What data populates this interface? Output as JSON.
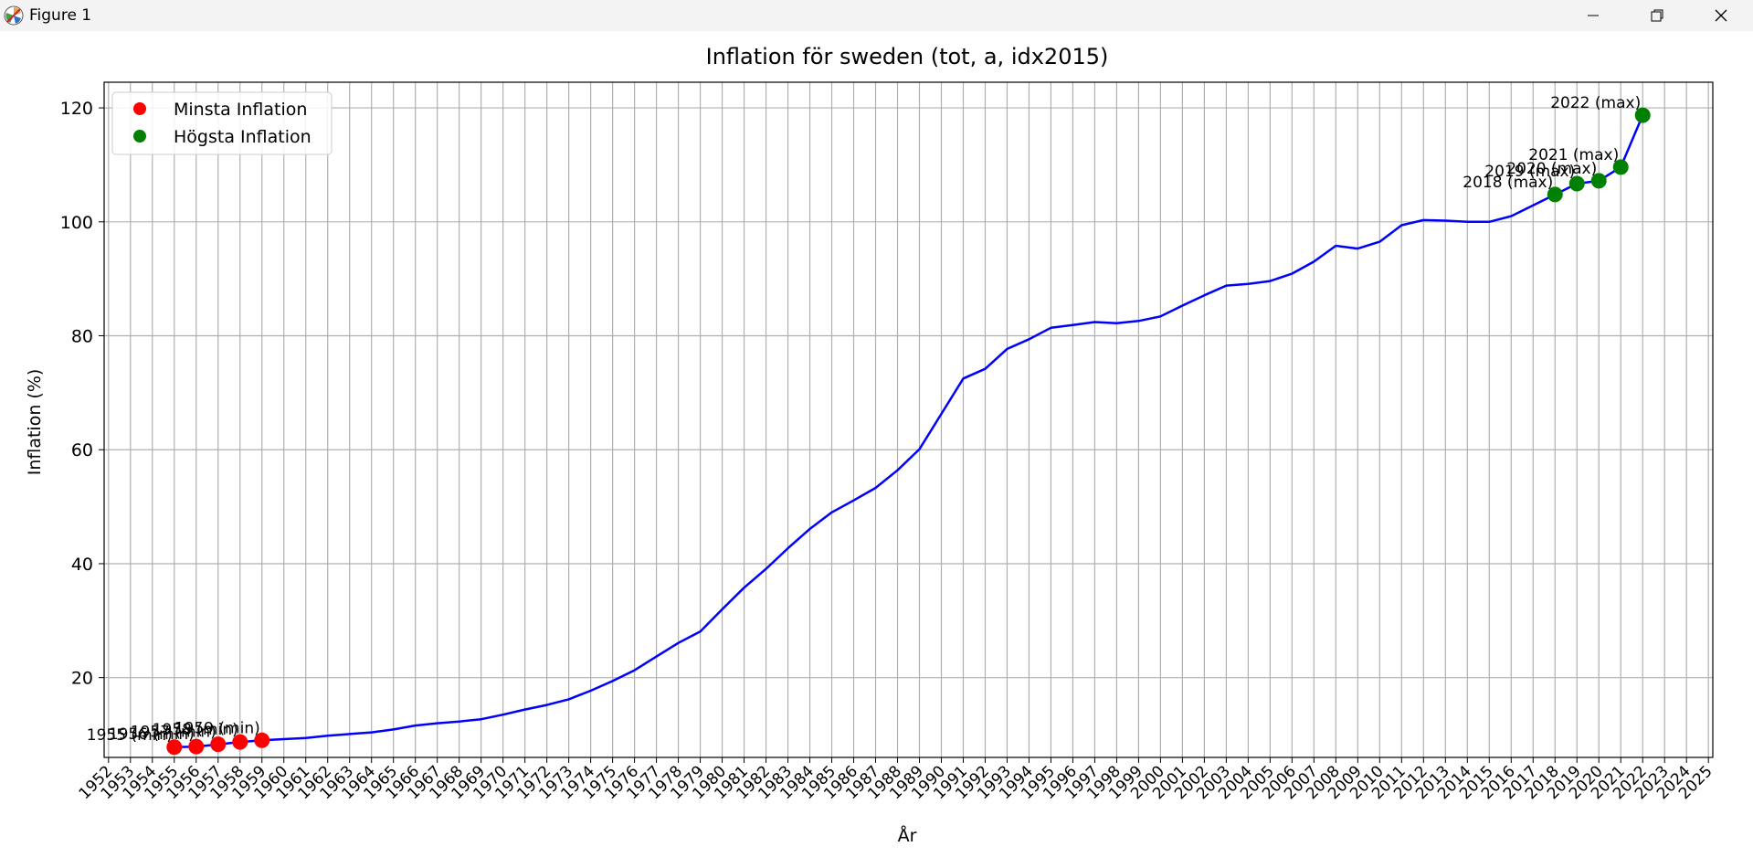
{
  "window": {
    "title": "Figure 1",
    "icons": {
      "app": "matplotlib-icon",
      "minimize": "minimize-icon",
      "maximize": "restore-icon",
      "close": "close-icon"
    }
  },
  "colors": {
    "line": "#0000ff",
    "min_marker": "#ff0000",
    "max_marker": "#008000",
    "grid": "#b0b0b0"
  },
  "chart_data": {
    "type": "line",
    "title": "Inflation för sweden (tot, a, idx2015)",
    "xlabel": "År",
    "ylabel": "Inflation (%)",
    "grid": true,
    "legend_position": "top-left",
    "xlim": [
      1951.8,
      2025.2
    ],
    "ylim": [
      6.0,
      124.5
    ],
    "x_ticks": [
      1952,
      1953,
      1954,
      1955,
      1956,
      1957,
      1958,
      1959,
      1960,
      1961,
      1962,
      1963,
      1964,
      1965,
      1966,
      1967,
      1968,
      1969,
      1970,
      1971,
      1972,
      1973,
      1974,
      1975,
      1976,
      1977,
      1978,
      1979,
      1980,
      1981,
      1982,
      1983,
      1984,
      1985,
      1986,
      1987,
      1988,
      1989,
      1990,
      1991,
      1992,
      1993,
      1994,
      1995,
      1996,
      1997,
      1998,
      1999,
      2000,
      2001,
      2002,
      2003,
      2004,
      2005,
      2006,
      2007,
      2008,
      2009,
      2010,
      2011,
      2012,
      2013,
      2014,
      2015,
      2016,
      2017,
      2018,
      2019,
      2020,
      2021,
      2022,
      2023,
      2024,
      2025
    ],
    "y_ticks": [
      20,
      40,
      60,
      80,
      100,
      120
    ],
    "series": [
      {
        "x": [
          1955,
          1956,
          1957,
          1958,
          1959,
          1960,
          1961,
          1962,
          1963,
          1964,
          1965,
          1966,
          1967,
          1968,
          1969,
          1970,
          1971,
          1972,
          1973,
          1974,
          1975,
          1976,
          1977,
          1978,
          1979,
          1980,
          1981,
          1982,
          1983,
          1984,
          1985,
          1986,
          1987,
          1988,
          1989,
          1990,
          1991,
          1992,
          1993,
          1994,
          1995,
          1996,
          1997,
          1998,
          1999,
          2000,
          2001,
          2002,
          2003,
          2004,
          2005,
          2006,
          2007,
          2008,
          2009,
          2010,
          2011,
          2012,
          2013,
          2014,
          2015,
          2016,
          2017,
          2018,
          2019,
          2020,
          2021,
          2022
        ],
        "values": [
          7.8,
          7.9,
          8.3,
          8.7,
          9.0,
          9.2,
          9.4,
          9.8,
          10.1,
          10.4,
          10.9,
          11.6,
          12.0,
          12.3,
          12.7,
          13.5,
          14.4,
          15.2,
          16.2,
          17.7,
          19.4,
          21.3,
          23.7,
          26.1,
          28.1,
          32.0,
          35.8,
          39.1,
          42.7,
          46.1,
          49.0,
          51.1,
          53.3,
          56.4,
          60.1,
          66.3,
          72.5,
          74.2,
          77.7,
          79.4,
          81.4,
          81.9,
          82.4,
          82.2,
          82.6,
          83.4,
          85.3,
          87.1,
          88.8,
          89.1,
          89.6,
          90.9,
          93.0,
          95.8,
          95.3,
          96.5,
          99.4,
          100.3,
          100.2,
          100.0,
          100.0,
          101.0,
          102.9,
          104.8,
          106.7,
          107.2,
          109.6,
          118.7
        ]
      },
      {
        "name": "Minsta Inflation",
        "type": "scatter",
        "x": [
          1955,
          1956,
          1957,
          1958,
          1959
        ],
        "values": [
          7.8,
          7.9,
          8.3,
          8.7,
          9.0
        ],
        "labels": [
          "1955 (min)",
          "1956 (min)",
          "1957 (min)",
          "1958 (min)",
          "1959 (min)"
        ]
      },
      {
        "name": "Högsta Inflation",
        "type": "scatter",
        "x": [
          2018,
          2019,
          2020,
          2021,
          2022
        ],
        "values": [
          104.8,
          106.7,
          107.2,
          109.6,
          118.7
        ],
        "labels": [
          "2018 (max)",
          "2019 (max)",
          "2020 (max)",
          "2021 (max)",
          "2022 (max)"
        ]
      }
    ]
  }
}
